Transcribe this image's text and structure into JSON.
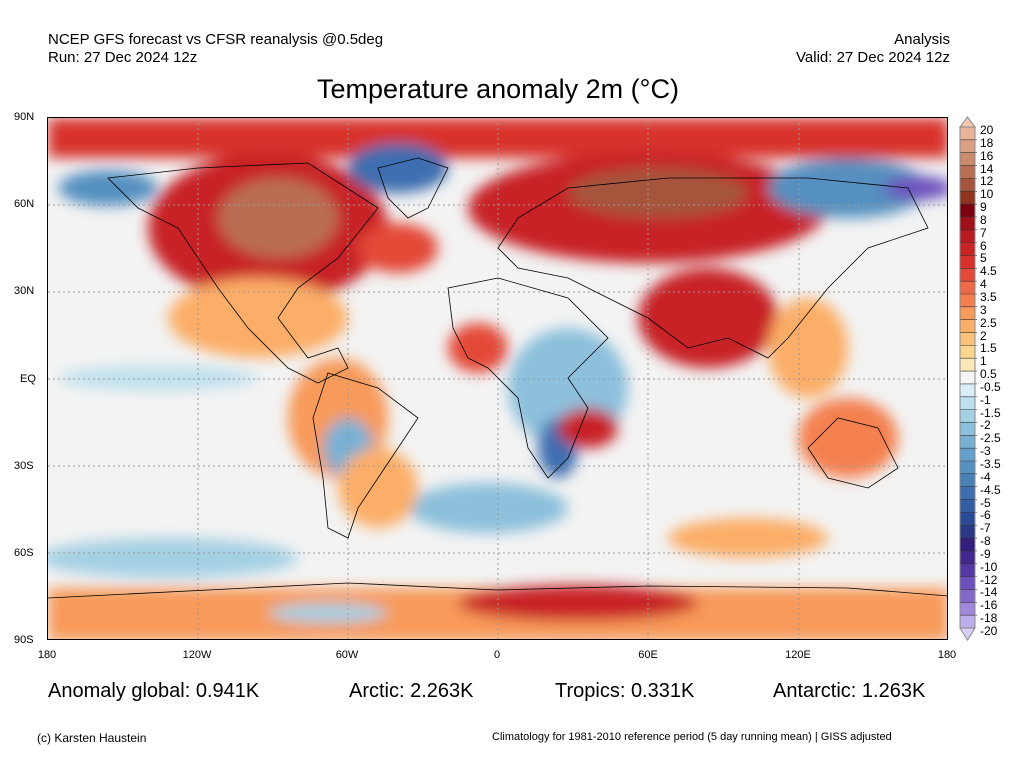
{
  "header": {
    "left_line1": "NCEP GFS forecast vs CFSR reanalysis @0.5deg",
    "left_line2": "Run: 27 Dec 2024 12z",
    "right_line1": "Analysis",
    "right_line2": "Valid: 27 Dec 2024 12z",
    "title": "Temperature anomaly 2m (°C)"
  },
  "axes": {
    "lat_labels": [
      "90N",
      "60N",
      "30N",
      "EQ",
      "30S",
      "60S",
      "90S"
    ],
    "lon_labels": [
      "180",
      "120W",
      "60W",
      "0",
      "60E",
      "120E",
      "180"
    ]
  },
  "stats": {
    "global": "Anomaly global: 0.941K",
    "arctic": "Arctic: 2.263K",
    "tropics": "Tropics: 0.331K",
    "antarctic": "Antarctic: 1.263K"
  },
  "footer": {
    "credit": "(c) Karsten Haustein",
    "note": "Climatology for 1981-2010 reference period (5 day running mean) | GISS adjusted"
  },
  "chart_data": {
    "type": "heatmap",
    "title": "Temperature anomaly 2m (°C)",
    "units": "°C",
    "global_anomaly_K": 0.941,
    "arctic_anomaly_K": 2.263,
    "tropics_anomaly_K": 0.331,
    "antarctic_anomaly_K": 1.263,
    "xlim": [
      -180,
      180
    ],
    "ylim": [
      -90,
      90
    ],
    "colorbar": {
      "labels": [
        "20",
        "18",
        "16",
        "14",
        "12",
        "10",
        "9",
        "8",
        "7",
        "6",
        "5",
        "4.5",
        "4",
        "3.5",
        "3",
        "2.5",
        "2",
        "1.5",
        "1",
        "0.5",
        "-0.5",
        "-1",
        "-1.5",
        "-2",
        "-2.5",
        "-3",
        "-3.5",
        "-4",
        "-4.5",
        "-5",
        "-6",
        "-7",
        "-8",
        "-9",
        "-10",
        "-12",
        "-14",
        "-16",
        "-18",
        "-20"
      ],
      "colors": [
        "#e8b59c",
        "#dba084",
        "#cc8a6c",
        "#b96e52",
        "#a6543c",
        "#8e3420",
        "#7d0010",
        "#a01018",
        "#b81c20",
        "#c82426",
        "#d8302a",
        "#e44a38",
        "#ee6a48",
        "#f4804f",
        "#f89a5a",
        "#fcae68",
        "#fdc27a",
        "#fdd690",
        "#f8e8b8",
        "#f5f5f5",
        "#d8eef8",
        "#bde0ee",
        "#a4d0e4",
        "#8cc0dc",
        "#78b0d4",
        "#64a0cc",
        "#5490c0",
        "#4880b8",
        "#3c6eb0",
        "#325ca4",
        "#2c4a98",
        "#2a3888",
        "#321c7c",
        "#40288c",
        "#5438a4",
        "#6c50bc",
        "#8468cc",
        "#a088dc",
        "#bcacec"
      ],
      "over_color": "#f6c8b0",
      "under_color": "#d8d0f4"
    }
  }
}
